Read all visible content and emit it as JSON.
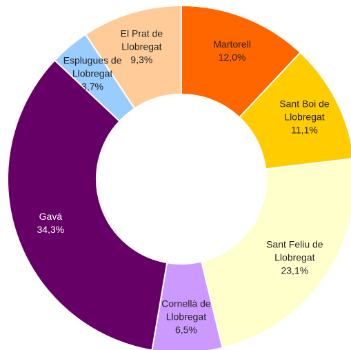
{
  "chart_data": {
    "type": "donut",
    "categories": [
      "Martorell",
      "Sant Boi de Llobregat",
      "Sant Feliu de Llobregat",
      "Cornellà de Llobregat",
      "Gavà",
      "Esplugues de Llobregat",
      "El Prat de Llobregat"
    ],
    "values": [
      12.0,
      11.1,
      23.1,
      6.5,
      34.3,
      3.7,
      9.3
    ],
    "value_labels": [
      "12,0%",
      "11,1%",
      "23,1%",
      "6,5%",
      "34,3%",
      "3,7%",
      "9,3%"
    ],
    "colors": [
      "#ff6600",
      "#ffcc00",
      "#ffffcc",
      "#cc99ff",
      "#660066",
      "#99ccff",
      "#ffcc99"
    ]
  }
}
